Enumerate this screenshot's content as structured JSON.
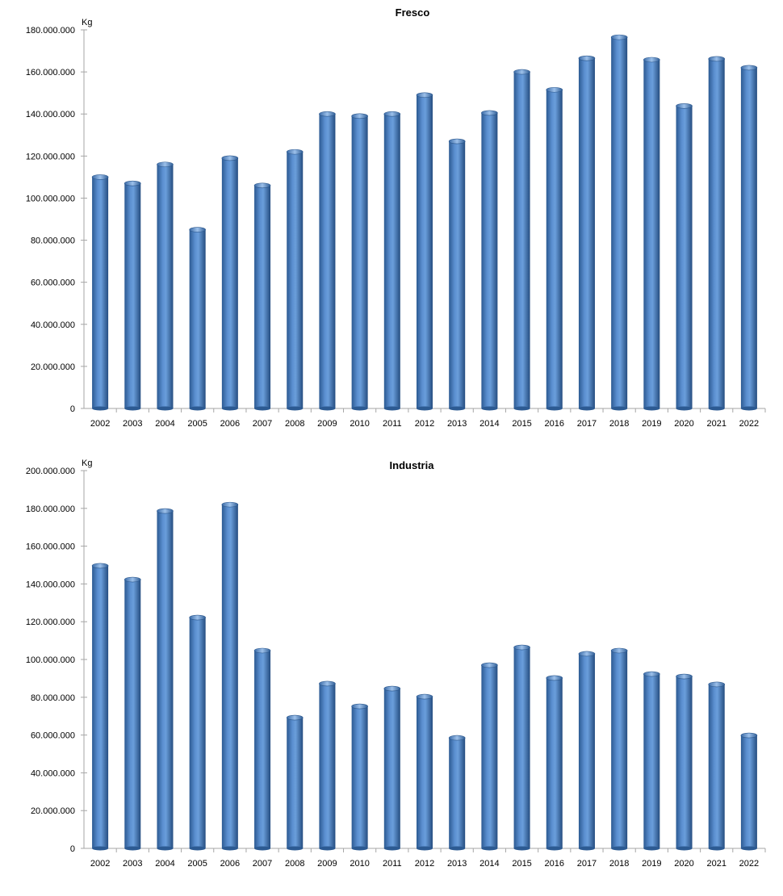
{
  "chart_data": [
    {
      "type": "bar",
      "title": "Fresco",
      "ylabel": "Kg",
      "xlabel": "",
      "ylim": [
        0,
        180000000
      ],
      "ytick_step": 20000000,
      "ytick_labels": [
        "0",
        "20.000.000",
        "40.000.000",
        "60.000.000",
        "80.000.000",
        "100.000.000",
        "120.000.000",
        "140.000.000",
        "160.000.000",
        "180.000.000"
      ],
      "grid": false,
      "categories": [
        "2002",
        "2003",
        "2004",
        "2005",
        "2006",
        "2007",
        "2008",
        "2009",
        "2010",
        "2011",
        "2012",
        "2013",
        "2014",
        "2015",
        "2016",
        "2017",
        "2018",
        "2019",
        "2020",
        "2021",
        "2022"
      ],
      "values": [
        110000000,
        107000000,
        116000000,
        85000000,
        119000000,
        106000000,
        122000000,
        140000000,
        139000000,
        140000000,
        149000000,
        127000000,
        140500000,
        160000000,
        151500000,
        166500000,
        176500000,
        165800000,
        143800000,
        166200000,
        162000000
      ],
      "color": "#4a7ebb"
    },
    {
      "type": "bar",
      "title": "Industria",
      "ylabel": "Kg",
      "xlabel": "",
      "ylim": [
        0,
        200000000
      ],
      "ytick_step": 20000000,
      "ytick_labels": [
        "0",
        "20.000.000",
        "40.000.000",
        "60.000.000",
        "80.000.000",
        "100.000.000",
        "120.000.000",
        "140.000.000",
        "160.000.000",
        "180.000.000",
        "200.000.000"
      ],
      "grid": false,
      "categories": [
        "2002",
        "2003",
        "2004",
        "2005",
        "2006",
        "2007",
        "2008",
        "2009",
        "2010",
        "2011",
        "2012",
        "2013",
        "2014",
        "2015",
        "2016",
        "2017",
        "2018",
        "2019",
        "2020",
        "2021",
        "2022"
      ],
      "values": [
        149600000,
        142300000,
        178600000,
        122200000,
        182000000,
        104700000,
        69200000,
        87200000,
        75200000,
        84600000,
        80300000,
        58500000,
        97000000,
        106400000,
        90200000,
        103000000,
        104700000,
        92300000,
        91000000,
        86800000,
        59800000
      ],
      "color": "#4a7ebb"
    }
  ]
}
